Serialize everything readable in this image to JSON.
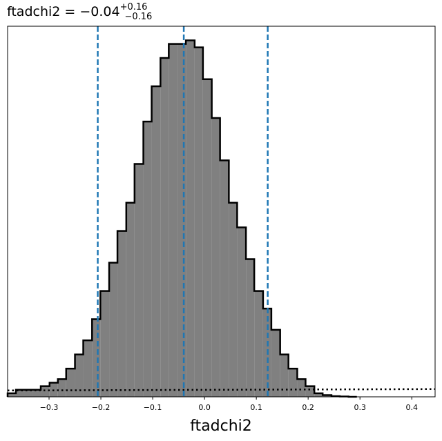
{
  "chart_data": {
    "type": "histogram",
    "title": {
      "param": "ftadchi2",
      "median": "−0.04",
      "upper": "+0.16",
      "lower": "−0.16"
    },
    "xlabel": "ftadchi2",
    "ylabel": "",
    "xlim": [
      -0.38,
      0.445
    ],
    "ylim": [
      0,
      1.05
    ],
    "xticks": [
      -0.3,
      -0.2,
      -0.1,
      0.0,
      0.1,
      0.2,
      0.3,
      0.4
    ],
    "xtick_labels": [
      "−0.3",
      "−0.2",
      "−0.1",
      "0.0",
      "0.1",
      "0.2",
      "0.3",
      "0.4"
    ],
    "yticks": [],
    "grid": false,
    "histogram": {
      "bin_edges": [
        -0.38,
        -0.364,
        -0.348,
        -0.332,
        -0.316,
        -0.299,
        -0.283,
        -0.267,
        -0.25,
        -0.234,
        -0.217,
        -0.201,
        -0.184,
        -0.168,
        -0.151,
        -0.135,
        -0.118,
        -0.102,
        -0.085,
        -0.069,
        -0.052,
        -0.036,
        -0.019,
        -0.003,
        0.014,
        0.03,
        0.047,
        0.063,
        0.08,
        0.096,
        0.113,
        0.129,
        0.146,
        0.162,
        0.179,
        0.195,
        0.212,
        0.228,
        0.245,
        0.261,
        0.278,
        0.294
      ],
      "counts": [
        0.01,
        0.02,
        0.02,
        0.02,
        0.03,
        0.04,
        0.05,
        0.08,
        0.12,
        0.16,
        0.22,
        0.3,
        0.38,
        0.47,
        0.55,
        0.66,
        0.78,
        0.88,
        0.96,
        1.0,
        1.0,
        1.01,
        0.99,
        0.9,
        0.79,
        0.67,
        0.55,
        0.48,
        0.39,
        0.3,
        0.25,
        0.19,
        0.12,
        0.08,
        0.05,
        0.03,
        0.01,
        0.005,
        0.002,
        0.001,
        0.0
      ],
      "fill_color": "#808080",
      "edge_color": "#000000"
    },
    "vlines": {
      "values": [
        -0.206,
        -0.04,
        0.122
      ],
      "color": "#1f77b4",
      "style": "dashed"
    },
    "prior_curve": {
      "x": [
        -0.38,
        0.445
      ],
      "y": [
        0.018,
        0.022
      ],
      "color": "#000000",
      "style": "dotted"
    }
  }
}
